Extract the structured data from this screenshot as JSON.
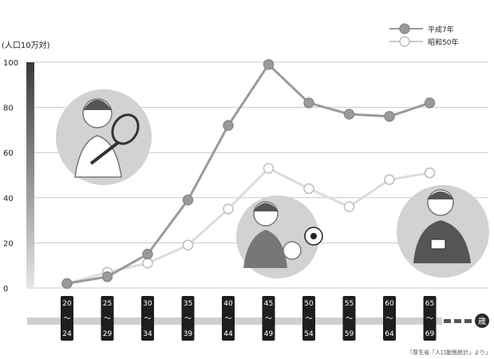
{
  "chart_data": {
    "type": "line",
    "ylabel": "(人口10万対)",
    "ylim": [
      0,
      100
    ],
    "yticks": [
      0,
      20,
      40,
      60,
      80,
      100
    ],
    "categories": [
      [
        "20",
        "〜",
        "24"
      ],
      [
        "25",
        "〜",
        "29"
      ],
      [
        "30",
        "〜",
        "34"
      ],
      [
        "35",
        "〜",
        "39"
      ],
      [
        "40",
        "〜",
        "44"
      ],
      [
        "45",
        "〜",
        "49"
      ],
      [
        "50",
        "〜",
        "54"
      ],
      [
        "55",
        "〜",
        "59"
      ],
      [
        "60",
        "〜",
        "64"
      ],
      [
        "65",
        "〜",
        "69"
      ]
    ],
    "end_label": "歳",
    "series": [
      {
        "name": "平成7年",
        "color": "#9a9a9a",
        "values": [
          2,
          5,
          15,
          39,
          72,
          99,
          82,
          77,
          76,
          82
        ]
      },
      {
        "name": "昭和50年",
        "color": "#dcdcdc",
        "values": [
          2,
          7,
          11,
          19,
          35,
          53,
          44,
          36,
          48,
          51
        ]
      }
    ],
    "grid": true,
    "legend_position": "top-right",
    "source": "「厚生省「人口動態統計」より」"
  }
}
